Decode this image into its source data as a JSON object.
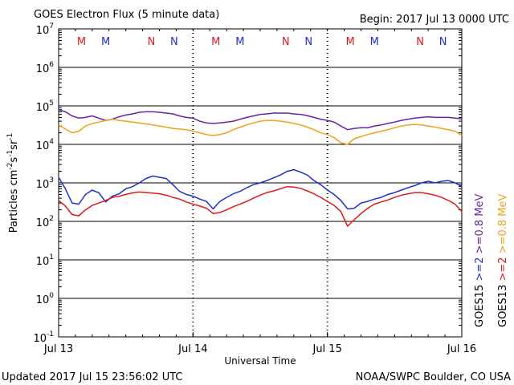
{
  "title": "GOES Electron Flux (5 minute data)",
  "begin_label": "Begin: 2017 Jul 13 0000 UTC",
  "updated": "Updated 2017 Jul 15 23:56:02 UTC",
  "credit": "NOAA/SWPC Boulder, CO USA",
  "colors": {
    "goes15_ge2": "#1f2fd0",
    "goes15_ge08": "#6a1fa8",
    "goes13_ge2": "#e01818",
    "goes13_ge08": "#eca317",
    "marker_m": "#e01818",
    "marker_n": "#e01818"
  },
  "chart_data": {
    "type": "line",
    "title": "GOES Electron Flux (5 minute data)",
    "xlabel": "Universal Time",
    "ylabel": "Particles cm",
    "ylabel_sup1": "-2",
    "ylabel_mid": "s",
    "ylabel_sup2": "-1",
    "ylabel_end": "sr",
    "ylabel_sup3": "-1",
    "y_scale": "log",
    "ylim": [
      0.1,
      10000000
    ],
    "xlim": [
      0,
      3
    ],
    "x_ticks": [
      {
        "x": 0,
        "label": "Jul 13"
      },
      {
        "x": 1,
        "label": "Jul 14"
      },
      {
        "x": 2,
        "label": "Jul 15"
      },
      {
        "x": 3,
        "label": "Jul 16"
      }
    ],
    "y_ticks": [
      {
        "exp": 7,
        "base": "10",
        "sup": "7"
      },
      {
        "exp": 6,
        "base": "10",
        "sup": "6"
      },
      {
        "exp": 5,
        "base": "10",
        "sup": "5"
      },
      {
        "exp": 4,
        "base": "10",
        "sup": "4"
      },
      {
        "exp": 3,
        "base": "10",
        "sup": "3"
      },
      {
        "exp": 2,
        "base": "10",
        "sup": "2"
      },
      {
        "exp": 1,
        "base": "10",
        "sup": "1"
      },
      {
        "exp": 0,
        "base": "10",
        "sup": "0"
      },
      {
        "exp": -1,
        "base": "10",
        "sup": "-1"
      }
    ],
    "threshold": 1000,
    "markers": [
      {
        "x": 0.17,
        "label": "M",
        "color": "#e01818"
      },
      {
        "x": 0.35,
        "label": "M",
        "color": "#1f2fd0"
      },
      {
        "x": 0.69,
        "label": "N",
        "color": "#e01818"
      },
      {
        "x": 0.86,
        "label": "N",
        "color": "#1f2fd0"
      },
      {
        "x": 1.17,
        "label": "M",
        "color": "#e01818"
      },
      {
        "x": 1.35,
        "label": "M",
        "color": "#1f2fd0"
      },
      {
        "x": 1.69,
        "label": "N",
        "color": "#e01818"
      },
      {
        "x": 1.86,
        "label": "N",
        "color": "#1f2fd0"
      },
      {
        "x": 2.17,
        "label": "M",
        "color": "#e01818"
      },
      {
        "x": 2.35,
        "label": "M",
        "color": "#1f2fd0"
      },
      {
        "x": 2.69,
        "label": "N",
        "color": "#e01818"
      },
      {
        "x": 2.86,
        "label": "N",
        "color": "#1f2fd0"
      }
    ],
    "legend_right": [
      {
        "text": "GOES15",
        "color": "#000000"
      },
      {
        "text": ">=2",
        "color": "#1f2fd0"
      },
      {
        "text": ">=0.8 MeV",
        "color": "#6a1fa8"
      },
      {
        "text": "GOES13",
        "color": "#000000"
      },
      {
        "text": ">=2",
        "color": "#e01818"
      },
      {
        "text": ">=0.8 MeV",
        "color": "#eca317"
      }
    ],
    "series": [
      {
        "name": "GOES15 >=2 MeV",
        "color": "#1f2fd0",
        "x": [
          0,
          0.05,
          0.1,
          0.15,
          0.2,
          0.25,
          0.3,
          0.35,
          0.4,
          0.45,
          0.5,
          0.55,
          0.6,
          0.65,
          0.7,
          0.75,
          0.8,
          0.85,
          0.9,
          0.95,
          1.0,
          1.05,
          1.1,
          1.15,
          1.2,
          1.25,
          1.3,
          1.35,
          1.4,
          1.45,
          1.5,
          1.55,
          1.6,
          1.65,
          1.7,
          1.75,
          1.8,
          1.85,
          1.9,
          1.95,
          2.0,
          2.05,
          2.1,
          2.15,
          2.2,
          2.25,
          2.3,
          2.35,
          2.4,
          2.45,
          2.5,
          2.55,
          2.6,
          2.65,
          2.7,
          2.75,
          2.8,
          2.85,
          2.9,
          2.95,
          3.0
        ],
        "y": [
          1400,
          700,
          300,
          280,
          500,
          650,
          550,
          320,
          450,
          520,
          700,
          800,
          1000,
          1300,
          1500,
          1400,
          1300,
          900,
          600,
          500,
          450,
          380,
          330,
          210,
          330,
          420,
          520,
          600,
          750,
          900,
          1000,
          1150,
          1350,
          1600,
          2000,
          2200,
          1900,
          1600,
          1150,
          900,
          650,
          500,
          350,
          210,
          220,
          300,
          330,
          380,
          420,
          500,
          560,
          650,
          750,
          850,
          1000,
          1100,
          1000,
          1100,
          1150,
          1000,
          800
        ]
      },
      {
        "name": "GOES15 >=0.8 MeV",
        "color": "#6a1fa8",
        "x": [
          0,
          0.05,
          0.1,
          0.15,
          0.2,
          0.25,
          0.3,
          0.35,
          0.4,
          0.45,
          0.5,
          0.55,
          0.6,
          0.65,
          0.7,
          0.75,
          0.8,
          0.85,
          0.9,
          0.95,
          1.0,
          1.05,
          1.1,
          1.15,
          1.2,
          1.25,
          1.3,
          1.35,
          1.4,
          1.45,
          1.5,
          1.55,
          1.6,
          1.65,
          1.7,
          1.75,
          1.8,
          1.85,
          1.9,
          1.95,
          2.0,
          2.05,
          2.1,
          2.15,
          2.2,
          2.25,
          2.3,
          2.35,
          2.4,
          2.45,
          2.5,
          2.55,
          2.6,
          2.65,
          2.7,
          2.75,
          2.8,
          2.85,
          2.9,
          2.95,
          3.0
        ],
        "y": [
          80000,
          70000,
          55000,
          48000,
          50000,
          55000,
          48000,
          42000,
          45000,
          52000,
          58000,
          62000,
          68000,
          70000,
          70000,
          68000,
          65000,
          62000,
          55000,
          50000,
          48000,
          40000,
          36000,
          35000,
          36000,
          38000,
          40000,
          45000,
          50000,
          55000,
          60000,
          62000,
          65000,
          65000,
          65000,
          62000,
          60000,
          56000,
          50000,
          45000,
          42000,
          38000,
          30000,
          24000,
          26000,
          27000,
          27000,
          30000,
          32000,
          35000,
          38000,
          42000,
          45000,
          48000,
          50000,
          52000,
          50000,
          50000,
          50000,
          48000,
          46000
        ]
      },
      {
        "name": "GOES13 >=2 MeV",
        "color": "#e01818",
        "x": [
          0,
          0.05,
          0.1,
          0.15,
          0.2,
          0.25,
          0.3,
          0.35,
          0.4,
          0.45,
          0.5,
          0.55,
          0.6,
          0.65,
          0.7,
          0.75,
          0.8,
          0.85,
          0.9,
          0.95,
          1.0,
          1.05,
          1.1,
          1.15,
          1.2,
          1.25,
          1.3,
          1.35,
          1.4,
          1.45,
          1.5,
          1.55,
          1.6,
          1.65,
          1.7,
          1.75,
          1.8,
          1.85,
          1.9,
          1.95,
          2.0,
          2.05,
          2.1,
          2.15,
          2.2,
          2.25,
          2.3,
          2.35,
          2.4,
          2.45,
          2.5,
          2.55,
          2.6,
          2.65,
          2.7,
          2.75,
          2.8,
          2.85,
          2.9,
          2.95,
          3.0
        ],
        "y": [
          350,
          250,
          150,
          140,
          200,
          260,
          300,
          350,
          420,
          450,
          500,
          550,
          580,
          560,
          540,
          520,
          480,
          420,
          380,
          320,
          280,
          250,
          220,
          160,
          170,
          200,
          240,
          280,
          330,
          400,
          480,
          560,
          620,
          700,
          800,
          780,
          720,
          620,
          520,
          420,
          330,
          260,
          180,
          75,
          110,
          160,
          220,
          280,
          320,
          360,
          420,
          480,
          520,
          560,
          560,
          520,
          480,
          420,
          350,
          280,
          180
        ]
      },
      {
        "name": "GOES13 >=0.8 MeV",
        "color": "#eca317",
        "x": [
          0,
          0.05,
          0.1,
          0.15,
          0.2,
          0.25,
          0.3,
          0.35,
          0.4,
          0.45,
          0.5,
          0.55,
          0.6,
          0.65,
          0.7,
          0.75,
          0.8,
          0.85,
          0.9,
          0.95,
          1.0,
          1.05,
          1.1,
          1.15,
          1.2,
          1.25,
          1.3,
          1.35,
          1.4,
          1.45,
          1.5,
          1.55,
          1.6,
          1.65,
          1.7,
          1.75,
          1.8,
          1.85,
          1.9,
          1.95,
          2.0,
          2.05,
          2.1,
          2.15,
          2.2,
          2.25,
          2.3,
          2.35,
          2.4,
          2.45,
          2.5,
          2.55,
          2.6,
          2.65,
          2.7,
          2.75,
          2.8,
          2.85,
          2.9,
          2.95,
          3.0
        ],
        "y": [
          32000,
          25000,
          20000,
          22000,
          30000,
          35000,
          38000,
          42000,
          45000,
          42000,
          40000,
          38000,
          36000,
          34000,
          32000,
          30000,
          28000,
          26000,
          25000,
          24000,
          22000,
          20000,
          18000,
          17000,
          18000,
          20000,
          24000,
          28000,
          32000,
          36000,
          40000,
          42000,
          42000,
          40000,
          38000,
          35000,
          32000,
          28000,
          24000,
          20000,
          18000,
          15000,
          11000,
          10000,
          14000,
          16000,
          18000,
          20000,
          22000,
          24000,
          27000,
          30000,
          32000,
          33000,
          32000,
          30000,
          28000,
          26000,
          24000,
          22000,
          17000
        ]
      }
    ]
  }
}
